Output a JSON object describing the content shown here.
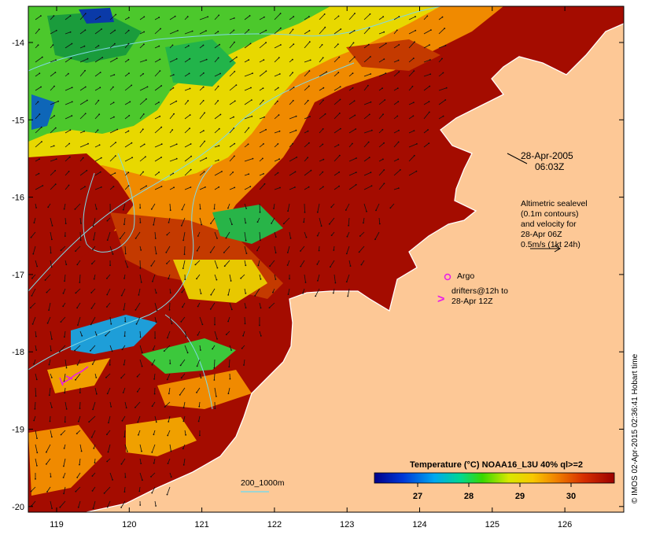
{
  "map": {
    "x_axis": {
      "ticks": [
        "119",
        "120",
        "121",
        "122",
        "123",
        "124",
        "125",
        "126"
      ]
    },
    "y_axis": {
      "ticks": [
        "-14",
        "-15",
        "-16",
        "-17",
        "-18",
        "-19",
        "-20"
      ]
    },
    "colors": {
      "land": "#fdc896",
      "coast": "#ffffff",
      "contour": "#7fd8e6",
      "argo": "#e81ce8",
      "drifter": "#e81ce8",
      "sst_hot": "#a40c00",
      "sst_warm": "#f08a00",
      "sst_mid": "#e8e800",
      "sst_cool": "#28c828",
      "sst_cold": "#0044cc"
    }
  },
  "annotations": {
    "date_line1": "28-Apr-2005",
    "date_line2": "06:03Z",
    "altimetry_lines": [
      "Altimetric sealevel",
      "(0.1m contours)",
      "and velocity for",
      "28-Apr 06Z",
      "0.5m/s (1kt 24h)"
    ],
    "argo_label": "Argo",
    "drifters_line1": "drifters@12h to",
    "drifters_line2": "28-Apr 12Z",
    "depth_contour_label": "200_1000m"
  },
  "colorbar": {
    "title": "Temperature (°C) NOAA16_L3U 40% ql>=2",
    "ticks": [
      "27",
      "28",
      "29",
      "30"
    ]
  },
  "credit": "© IMOS 02-Apr-2015 02:36:41 Hobart time"
}
